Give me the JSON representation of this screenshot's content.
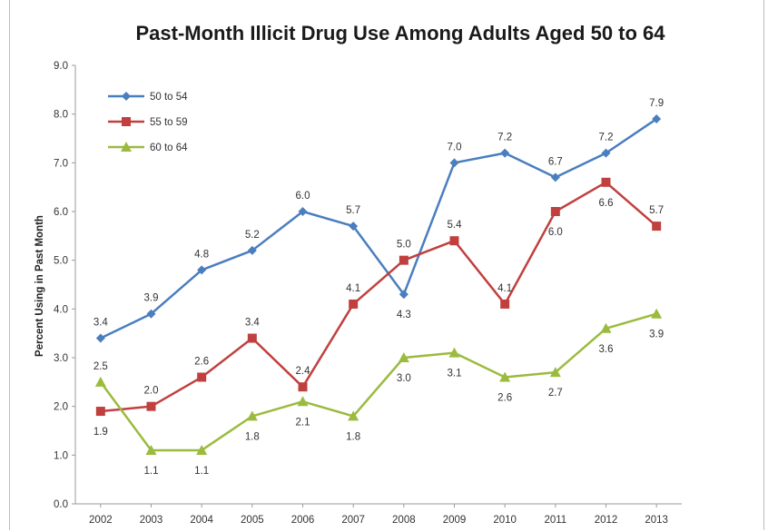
{
  "chart_data": {
    "type": "line",
    "title": "Past-Month Illicit Drug Use Among Adults Aged 50 to 64",
    "xlabel": "",
    "ylabel": "Percent Using in Past Month",
    "categories": [
      "2002",
      "2003",
      "2004",
      "2005",
      "2006",
      "2007",
      "2008",
      "2009",
      "2010",
      "2011",
      "2012",
      "2013"
    ],
    "ylim": [
      0,
      9
    ],
    "yticks": [
      "0.0",
      "1.0",
      "2.0",
      "3.0",
      "4.0",
      "5.0",
      "6.0",
      "7.0",
      "8.0",
      "9.0"
    ],
    "grid": false,
    "legend_position": "top-left",
    "series": [
      {
        "name": "50 to 54",
        "color": "#4a7ebf",
        "marker": "diamond",
        "values": [
          3.4,
          3.9,
          4.8,
          5.2,
          6.0,
          5.7,
          4.3,
          7.0,
          7.2,
          6.7,
          7.2,
          7.9
        ],
        "labels": [
          "3.4",
          "3.9",
          "4.8",
          "5.2",
          "6.0",
          "5.7",
          "4.3",
          "7.0",
          "7.2",
          "6.7",
          "7.2",
          "7.9"
        ],
        "label_pos": [
          "above",
          "above",
          "above",
          "above",
          "above",
          "above",
          "below",
          "above",
          "above",
          "above",
          "above",
          "above"
        ]
      },
      {
        "name": "55 to 59",
        "color": "#c0403f",
        "marker": "square",
        "values": [
          1.9,
          2.0,
          2.6,
          3.4,
          2.4,
          4.1,
          5.0,
          5.4,
          4.1,
          6.0,
          6.6,
          5.7
        ],
        "labels": [
          "1.9",
          "2.0",
          "2.6",
          "3.4",
          "2.4",
          "4.1",
          "5.0",
          "5.4",
          "4.1",
          "6.0",
          "6.6",
          "5.7"
        ],
        "label_pos": [
          "below",
          "above",
          "above",
          "above",
          "above",
          "above",
          "above",
          "above",
          "above",
          "below",
          "below",
          "above"
        ]
      },
      {
        "name": "60 to 64",
        "color": "#9bbb3f",
        "marker": "triangle",
        "values": [
          2.5,
          1.1,
          1.1,
          1.8,
          2.1,
          1.8,
          3.0,
          3.1,
          2.6,
          2.7,
          3.6,
          3.9
        ],
        "labels": [
          "2.5",
          "1.1",
          "1.1",
          "1.8",
          "2.1",
          "1.8",
          "3.0",
          "3.1",
          "2.6",
          "2.7",
          "3.6",
          "3.9"
        ],
        "label_pos": [
          "above",
          "below",
          "below",
          "below",
          "below",
          "below",
          "below",
          "below",
          "below",
          "below",
          "below",
          "below"
        ]
      }
    ]
  }
}
